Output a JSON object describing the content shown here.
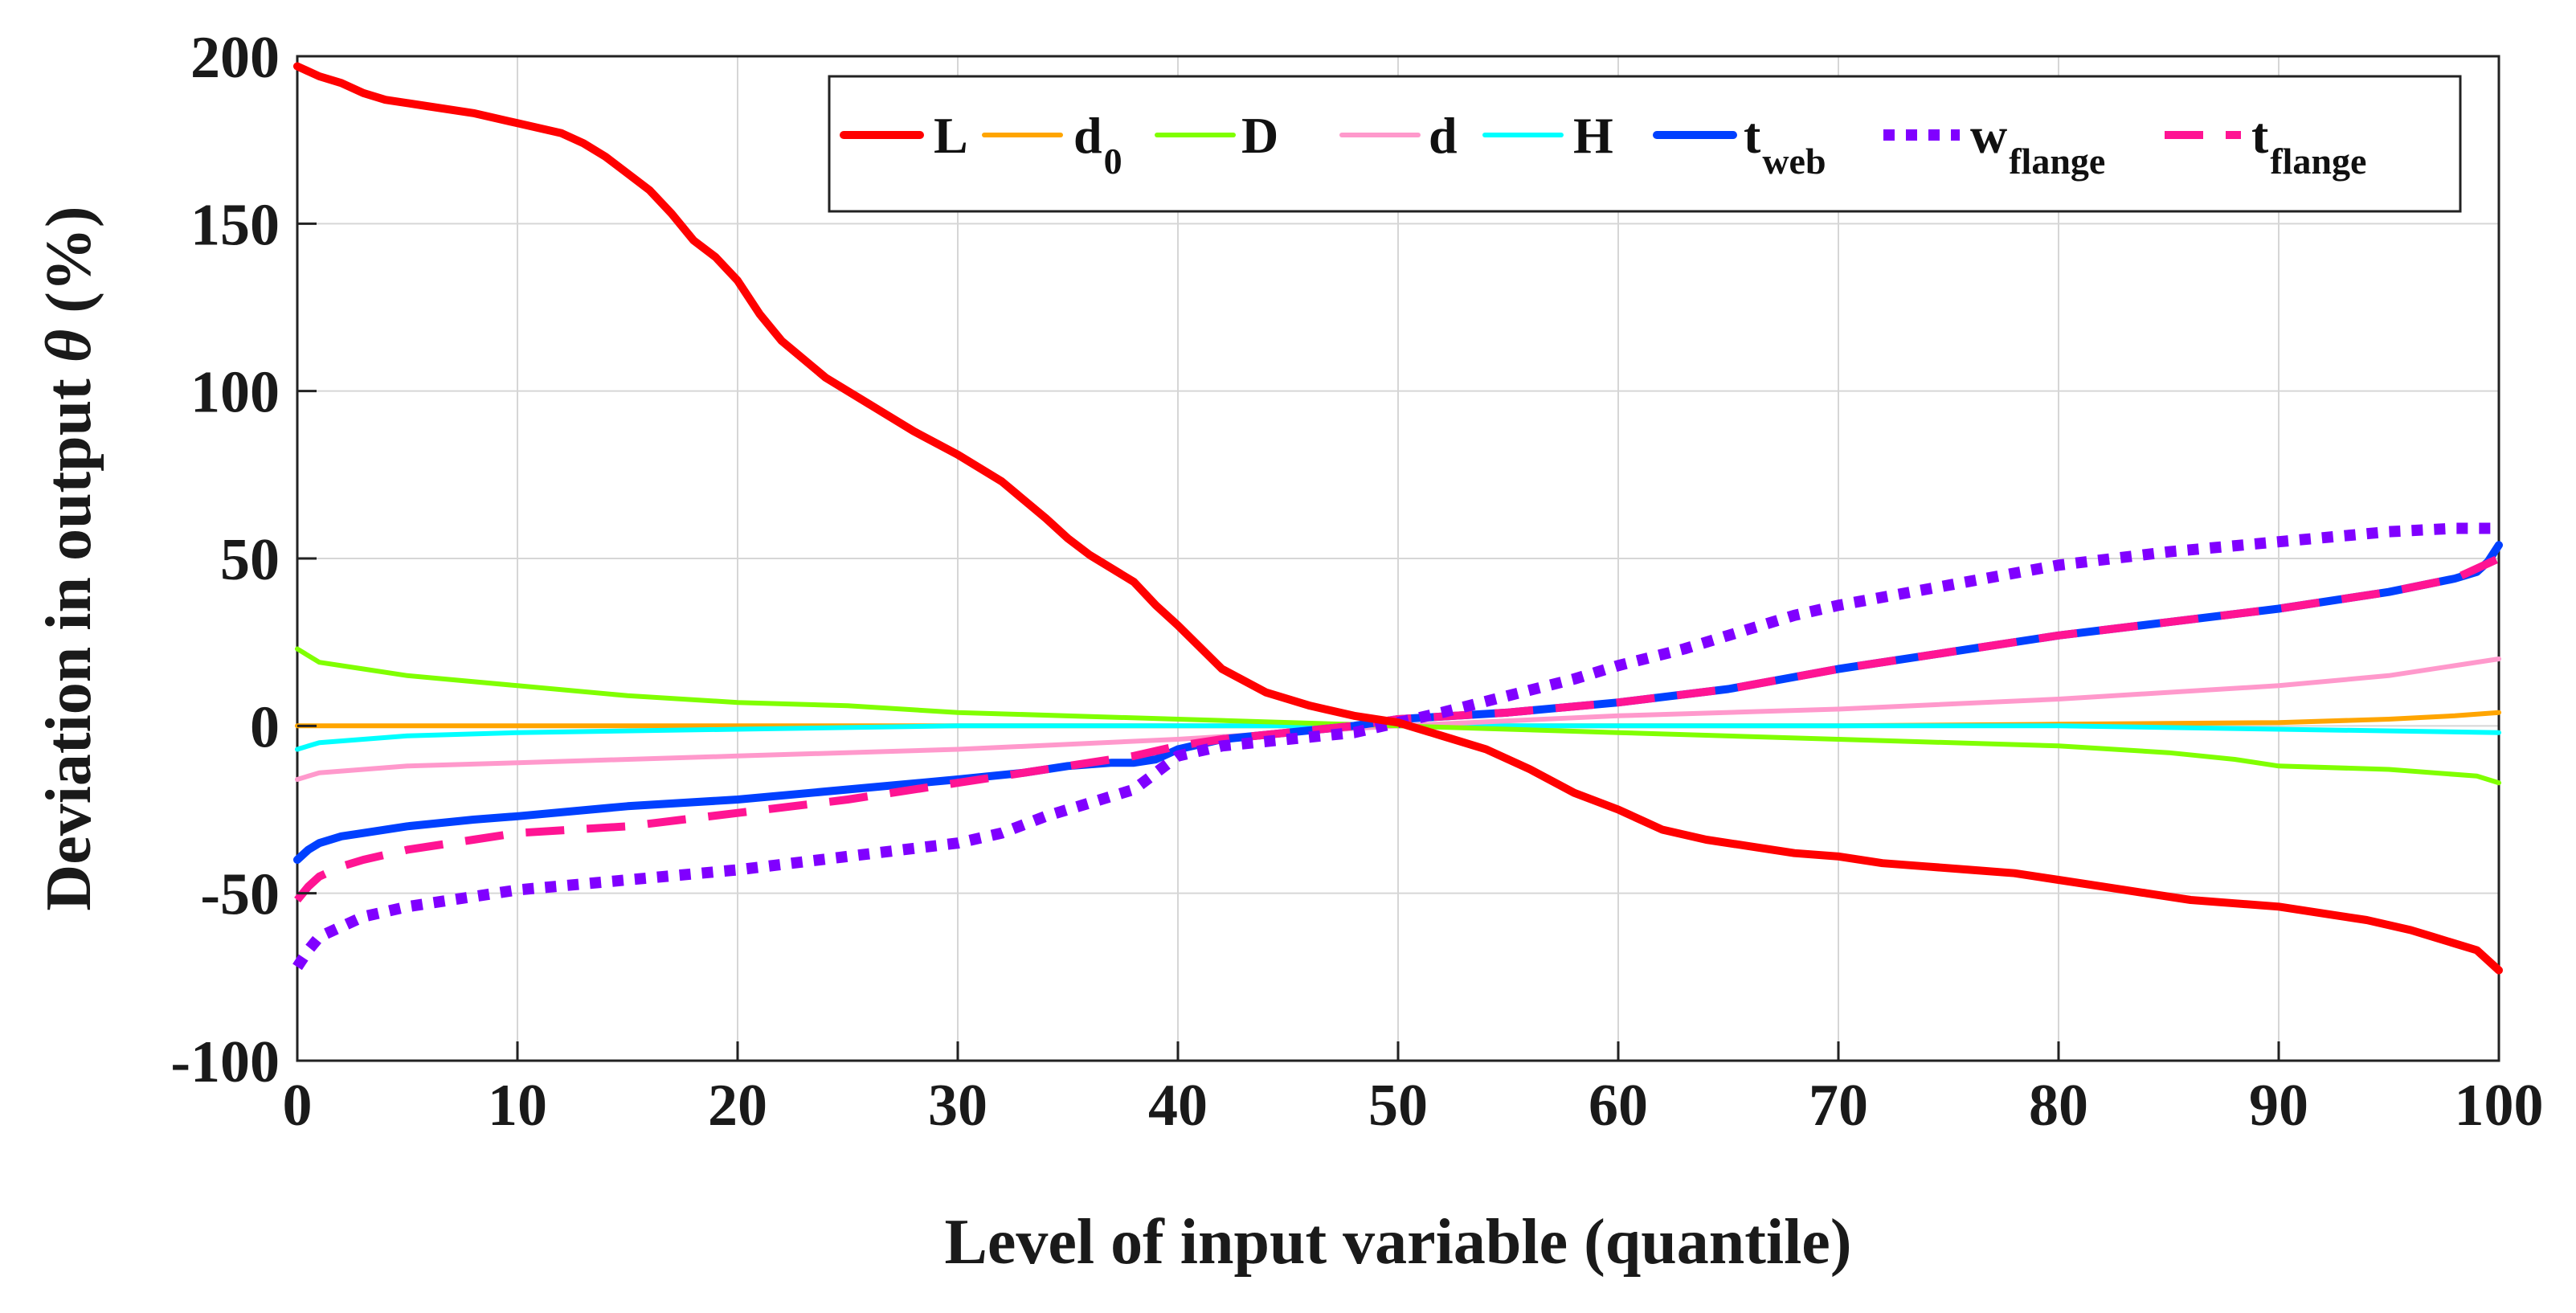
{
  "chart_data": {
    "type": "line",
    "title": "",
    "xlabel": "Level of input variable (quantile)",
    "ylabel_prefix": "Deviation in output ",
    "ylabel_symbol": "θ",
    "ylabel_suffix": " (%)",
    "xlim": [
      0,
      100
    ],
    "ylim": [
      -100,
      200
    ],
    "xticks": [
      "0",
      "10",
      "20",
      "30",
      "40",
      "50",
      "60",
      "70",
      "80",
      "90",
      "100"
    ],
    "yticks": [
      "-100",
      "-50",
      "0",
      "50",
      "100",
      "150",
      "200"
    ],
    "grid": true,
    "legend_position": "top-right",
    "series": [
      {
        "name": "L",
        "main": "L",
        "sub": "",
        "color": "#ff0000",
        "style": "solid",
        "x": [
          0,
          1,
          2,
          3,
          4,
          5,
          6,
          8,
          10,
          12,
          13,
          14,
          15,
          16,
          17,
          18,
          19,
          20,
          21,
          22,
          24,
          26,
          28,
          30,
          32,
          34,
          35,
          36,
          38,
          39,
          40,
          42,
          44,
          46,
          48,
          50,
          52,
          54,
          56,
          58,
          60,
          62,
          64,
          66,
          68,
          70,
          72,
          74,
          76,
          78,
          80,
          82,
          84,
          86,
          88,
          90,
          92,
          94,
          96,
          97,
          98,
          99,
          100
        ],
        "y": [
          197,
          194,
          192,
          189,
          187,
          186,
          185,
          183,
          180,
          177,
          174,
          170,
          165,
          160,
          153,
          145,
          140,
          133,
          123,
          115,
          104,
          96,
          88,
          81,
          73,
          62,
          56,
          51,
          43,
          36,
          30,
          17,
          10,
          6,
          3,
          1,
          -3,
          -7,
          -13,
          -20,
          -25,
          -31,
          -34,
          -36,
          -38,
          -39,
          -41,
          -42,
          -43,
          -44,
          -46,
          -48,
          -50,
          -52,
          -53,
          -54,
          -56,
          -58,
          -61,
          -63,
          -65,
          -67,
          -73
        ]
      },
      {
        "name": "d0",
        "main": "d",
        "sub": "0",
        "color": "#ffa500",
        "style": "solid",
        "x": [
          0,
          10,
          20,
          30,
          40,
          50,
          60,
          70,
          80,
          90,
          95,
          98,
          100
        ],
        "y": [
          0,
          0,
          0,
          0,
          0,
          0,
          0,
          0,
          0.5,
          1,
          2,
          3,
          4
        ]
      },
      {
        "name": "D",
        "main": "D",
        "sub": "",
        "color": "#80ff00",
        "style": "solid",
        "x": [
          0,
          1,
          3,
          5,
          10,
          15,
          20,
          25,
          30,
          40,
          50,
          60,
          70,
          80,
          85,
          88,
          90,
          95,
          99,
          100
        ],
        "y": [
          23,
          19,
          17,
          15,
          12,
          9,
          7,
          6,
          4,
          2,
          0,
          -2,
          -4,
          -6,
          -8,
          -10,
          -12,
          -13,
          -15,
          -17
        ]
      },
      {
        "name": "d",
        "main": "d",
        "sub": "",
        "color": "#ff99cc",
        "style": "solid",
        "x": [
          0,
          1,
          3,
          5,
          10,
          20,
          30,
          40,
          50,
          60,
          70,
          80,
          90,
          95,
          100
        ],
        "y": [
          -16,
          -14,
          -13,
          -12,
          -11,
          -9,
          -7,
          -4,
          0,
          3,
          5,
          8,
          12,
          15,
          20
        ]
      },
      {
        "name": "H",
        "main": "H",
        "sub": "",
        "color": "#00ffff",
        "style": "solid",
        "x": [
          0,
          1,
          3,
          5,
          10,
          20,
          30,
          40,
          50,
          60,
          70,
          80,
          90,
          100
        ],
        "y": [
          -7,
          -5,
          -4,
          -3,
          -2,
          -1,
          0,
          0,
          0,
          0,
          0,
          0,
          -1,
          -2
        ]
      },
      {
        "name": "tweb",
        "main": "t",
        "sub": "web",
        "color": "#0040ff",
        "style": "solid",
        "x": [
          0,
          0.5,
          1,
          2,
          3,
          5,
          8,
          10,
          15,
          20,
          25,
          30,
          33,
          35,
          37,
          38,
          39,
          40,
          42,
          45,
          48,
          50,
          55,
          60,
          65,
          70,
          75,
          80,
          85,
          90,
          95,
          98,
          99,
          99.5,
          100
        ],
        "y": [
          -40,
          -37,
          -35,
          -33,
          -32,
          -30,
          -28,
          -27,
          -24,
          -22,
          -19,
          -16,
          -14,
          -12,
          -11,
          -11,
          -10,
          -7,
          -4,
          -2,
          0,
          2,
          4,
          7,
          11,
          17,
          22,
          27,
          31,
          35,
          40,
          44,
          46,
          49,
          54
        ]
      },
      {
        "name": "wflange",
        "main": "w",
        "sub": "flange",
        "color": "#8000ff",
        "style": "dotted",
        "x": [
          0,
          0.5,
          1,
          2,
          3,
          5,
          8,
          10,
          15,
          20,
          25,
          30,
          32,
          34,
          36,
          38,
          39,
          40,
          42,
          45,
          48,
          50,
          52,
          55,
          58,
          60,
          63,
          65,
          68,
          70,
          75,
          80,
          85,
          90,
          95,
          98,
          100
        ],
        "y": [
          -72,
          -67,
          -63,
          -60,
          -57,
          -54,
          -51,
          -49,
          -46,
          -43,
          -39,
          -35,
          -32,
          -27,
          -23,
          -19,
          -14,
          -9,
          -6,
          -4,
          -2,
          1,
          4,
          9,
          14,
          18,
          23,
          27,
          33,
          36,
          42,
          48,
          52,
          55,
          58,
          59,
          59
        ]
      },
      {
        "name": "tflange",
        "main": "t",
        "sub": "flange",
        "color": "#ff1493",
        "style": "dashed",
        "x": [
          0,
          0.5,
          1,
          2,
          3,
          5,
          8,
          10,
          15,
          20,
          25,
          30,
          35,
          38,
          40,
          42,
          45,
          48,
          50,
          55,
          60,
          65,
          70,
          75,
          80,
          85,
          90,
          95,
          98,
          100
        ],
        "y": [
          -52,
          -48,
          -45,
          -42,
          -40,
          -37,
          -34,
          -32,
          -30,
          -26,
          -22,
          -17,
          -12,
          -9,
          -6,
          -4,
          -2,
          0,
          2,
          4,
          7,
          11,
          17,
          22,
          27,
          31,
          35,
          40,
          44,
          50
        ]
      }
    ]
  }
}
